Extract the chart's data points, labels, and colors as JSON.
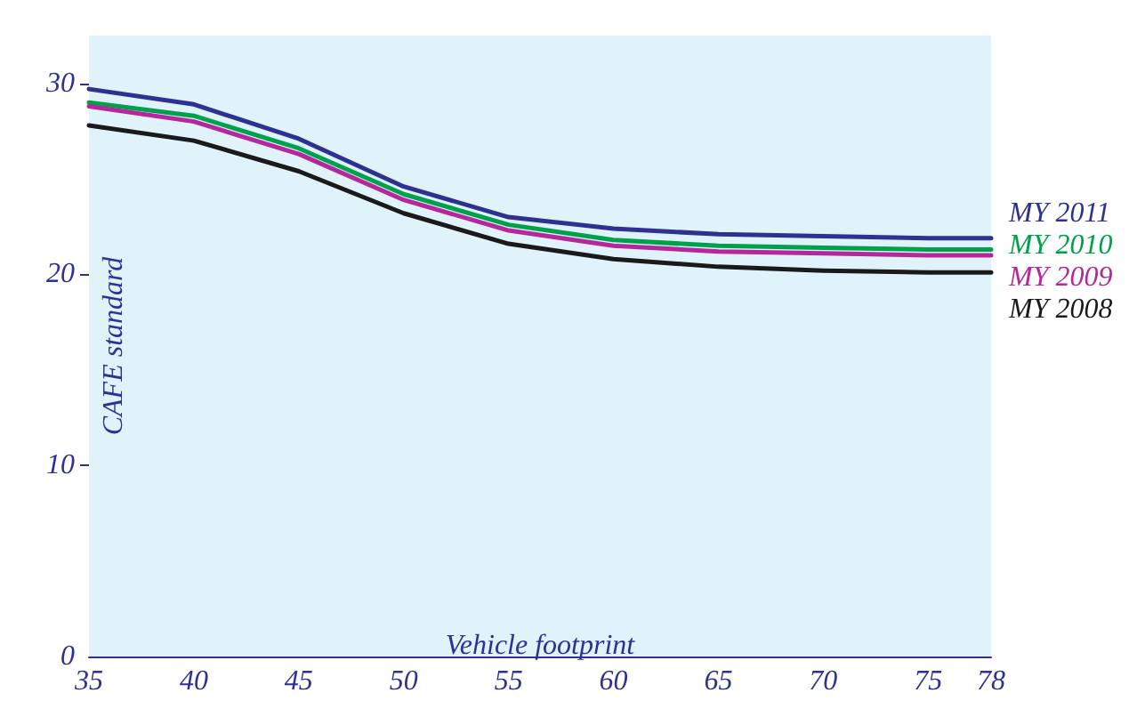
{
  "chart_data": {
    "type": "line",
    "xlabel": "Vehicle footprint",
    "ylabel": "CAFE standard",
    "x": [
      35,
      40,
      45,
      50,
      55,
      60,
      65,
      70,
      75,
      78
    ],
    "xlim": [
      35,
      78
    ],
    "xticks": [
      35,
      40,
      45,
      50,
      55,
      60,
      65,
      70,
      75,
      78
    ],
    "ylim": [
      0,
      32.5
    ],
    "yticks": [
      0,
      10,
      20,
      30
    ],
    "grid": false,
    "legend": false,
    "marker": "none",
    "line_style": "solid",
    "series": [
      {
        "name": "MY 2011",
        "color": "#2e3192",
        "values": [
          29.7,
          28.9,
          27.1,
          24.6,
          23.0,
          22.4,
          22.1,
          22.0,
          21.9,
          21.9
        ]
      },
      {
        "name": "MY 2010",
        "color": "#00a14b",
        "values": [
          29.0,
          28.3,
          26.6,
          24.2,
          22.6,
          21.8,
          21.5,
          21.4,
          21.3,
          21.3
        ]
      },
      {
        "name": "MY 2009",
        "color": "#b5279a",
        "values": [
          28.8,
          28.0,
          26.3,
          23.9,
          22.3,
          21.5,
          21.2,
          21.1,
          21.0,
          21.0
        ]
      },
      {
        "name": "MY 2008",
        "color": "#1a1a1a",
        "values": [
          27.8,
          27.0,
          25.4,
          23.2,
          21.6,
          20.8,
          20.4,
          20.2,
          20.1,
          20.1
        ]
      }
    ]
  }
}
